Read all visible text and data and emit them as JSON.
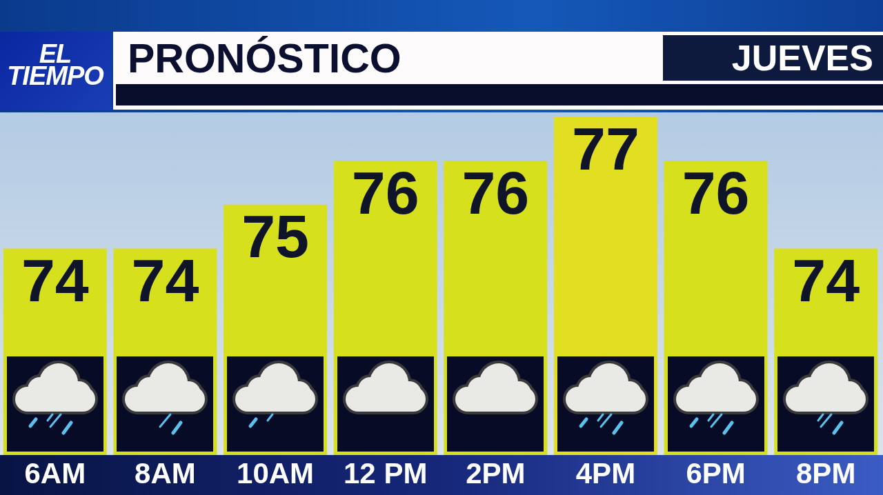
{
  "chart_data": {
    "type": "bar",
    "title": "PRONÓSTICO",
    "subtitle": "JUEVES",
    "annotations": [
      "EL TIEMPO"
    ],
    "categories": [
      "6AM",
      "8AM",
      "10AM",
      "12 PM",
      "2PM",
      "4PM",
      "6PM",
      "8PM"
    ],
    "values": [
      74,
      74,
      75,
      76,
      76,
      77,
      76,
      74
    ],
    "colors": [
      "#d7e01d",
      "#d7e01d",
      "#d7e01d",
      "#d7e01d",
      "#d7e01d",
      "#e2de22",
      "#d7e01d",
      "#d7e01d"
    ],
    "data_labels": true,
    "ylim": [
      69.3,
      77.1
    ],
    "tick_labels": "x"
  }
}
